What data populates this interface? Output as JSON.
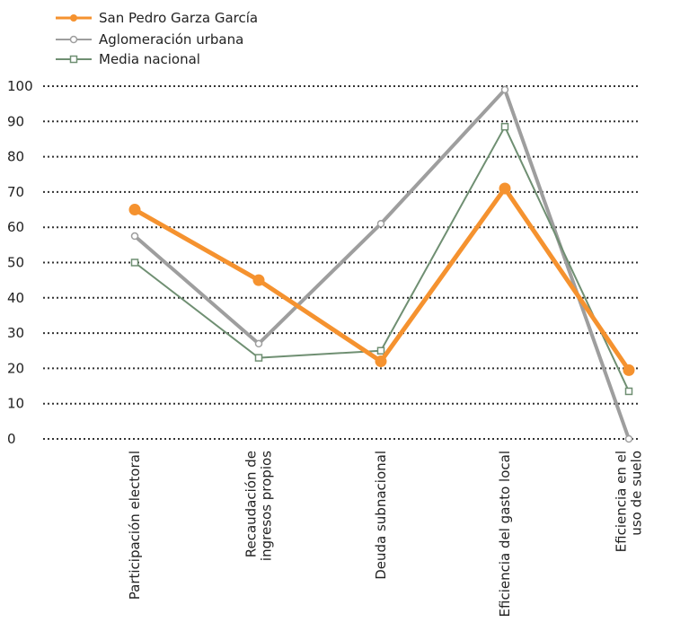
{
  "chart_data": {
    "type": "line",
    "categories": [
      [
        "Participación electoral"
      ],
      [
        "Recaudación de",
        "ingresos propios"
      ],
      [
        "Deuda subnacional"
      ],
      [
        "Eficiencia del gasto local"
      ],
      [
        "Eficiencia en el",
        "uso de suelo"
      ]
    ],
    "series": [
      {
        "name": "San Pedro Garza García",
        "values": [
          65,
          45,
          22,
          71,
          19.5
        ],
        "color": "#F5922F",
        "marker": "filled-circle"
      },
      {
        "name": "Aglomeración urbana",
        "values": [
          57.5,
          27,
          61,
          99,
          0
        ],
        "color": "#9E9E9E",
        "marker": "open-circle"
      },
      {
        "name": "Media nacional",
        "values": [
          50,
          23,
          25,
          88.5,
          13.5
        ],
        "color": "#6F8F72",
        "marker": "open-square"
      }
    ],
    "ylim": [
      0,
      100
    ],
    "yticks": [
      0,
      10,
      20,
      30,
      40,
      50,
      60,
      70,
      80,
      90,
      100
    ],
    "grid": "horizontal dotted",
    "legend": "top-left"
  }
}
